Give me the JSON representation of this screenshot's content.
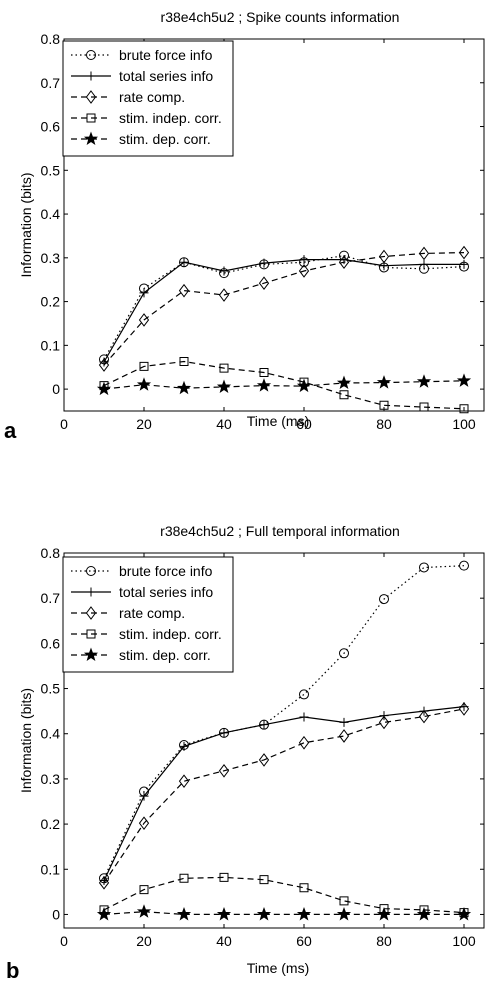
{
  "figure": {
    "panels": [
      {
        "letter": "a"
      },
      {
        "letter": "b"
      }
    ]
  },
  "chart_data": [
    {
      "type": "line",
      "title": "r38e4ch5u2 ; Spike counts information",
      "xlabel": "Time (ms)",
      "ylabel": "Information (bits)",
      "xlim": [
        0,
        105
      ],
      "ylim": [
        -0.05,
        0.8
      ],
      "xticks": [
        0,
        20,
        40,
        60,
        80,
        100
      ],
      "yticks": [
        0,
        0.1,
        0.2,
        0.3,
        0.4,
        0.5,
        0.6,
        0.7,
        0.8
      ],
      "x": [
        10,
        20,
        30,
        40,
        50,
        60,
        70,
        80,
        90,
        100
      ],
      "legend_position": "top-left",
      "series": [
        {
          "name": "brute force info",
          "marker": "circle",
          "dash": "dotted",
          "values": [
            0.068,
            0.23,
            0.29,
            0.265,
            0.285,
            0.29,
            0.305,
            0.278,
            0.275,
            0.28
          ]
        },
        {
          "name": "total series info",
          "marker": "plus",
          "dash": "solid",
          "values": [
            0.062,
            0.22,
            0.29,
            0.27,
            0.288,
            0.296,
            0.296,
            0.282,
            0.285,
            0.285
          ]
        },
        {
          "name": "rate comp.",
          "marker": "diamond",
          "dash": "dashed",
          "values": [
            0.055,
            0.158,
            0.225,
            0.215,
            0.242,
            0.27,
            0.29,
            0.303,
            0.31,
            0.312
          ]
        },
        {
          "name": "stim. indep. corr.",
          "marker": "square",
          "dash": "dashed",
          "values": [
            0.008,
            0.052,
            0.063,
            0.048,
            0.038,
            0.016,
            -0.013,
            -0.037,
            -0.041,
            -0.045
          ]
        },
        {
          "name": "stim. dep. corr.",
          "marker": "star",
          "dash": "dashed",
          "values": [
            0.0,
            0.01,
            0.002,
            0.005,
            0.008,
            0.007,
            0.014,
            0.015,
            0.017,
            0.019
          ]
        }
      ]
    },
    {
      "type": "line",
      "title": "r38e4ch5u2 ; Full temporal information",
      "xlabel": "Time (ms)",
      "ylabel": "Information (bits)",
      "xlim": [
        0,
        105
      ],
      "ylim": [
        -0.03,
        0.8
      ],
      "xticks": [
        0,
        20,
        40,
        60,
        80,
        100
      ],
      "yticks": [
        0,
        0.1,
        0.2,
        0.3,
        0.4,
        0.5,
        0.6,
        0.7,
        0.8
      ],
      "x": [
        10,
        20,
        30,
        40,
        50,
        60,
        70,
        80,
        90,
        100
      ],
      "legend_position": "top-left",
      "series": [
        {
          "name": "brute force info",
          "marker": "circle",
          "dash": "dotted",
          "values": [
            0.08,
            0.272,
            0.375,
            0.402,
            0.42,
            0.487,
            0.578,
            0.698,
            0.768,
            0.772
          ]
        },
        {
          "name": "total series info",
          "marker": "plus",
          "dash": "solid",
          "values": [
            0.075,
            0.262,
            0.372,
            0.402,
            0.42,
            0.437,
            0.425,
            0.44,
            0.45,
            0.46
          ]
        },
        {
          "name": "rate comp.",
          "marker": "diamond",
          "dash": "dashed",
          "values": [
            0.07,
            0.202,
            0.295,
            0.318,
            0.342,
            0.38,
            0.395,
            0.425,
            0.438,
            0.455
          ]
        },
        {
          "name": "stim. indep. corr.",
          "marker": "square",
          "dash": "dashed",
          "values": [
            0.01,
            0.055,
            0.08,
            0.082,
            0.077,
            0.059,
            0.03,
            0.013,
            0.01,
            0.004
          ]
        },
        {
          "name": "stim. dep. corr.",
          "marker": "star",
          "dash": "dashed",
          "values": [
            0.0,
            0.006,
            0.0,
            0.0,
            0.0,
            0.0,
            0.0,
            0.0,
            0.0,
            0.0
          ]
        }
      ]
    }
  ]
}
